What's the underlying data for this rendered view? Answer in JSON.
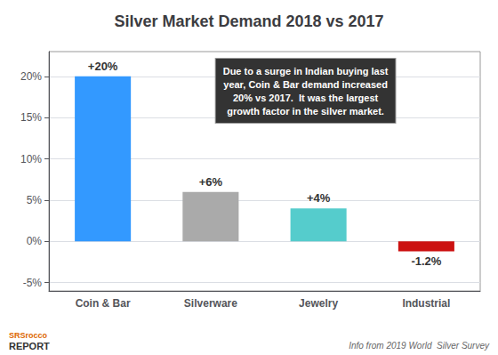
{
  "chart_data": {
    "type": "bar",
    "title": "Silver Market Demand 2018 vs 2017",
    "categories": [
      "Coin & Bar",
      "Silverware",
      "Jewelry",
      "Industrial"
    ],
    "values": [
      20,
      6,
      4,
      -1.2
    ],
    "value_labels": [
      "+20%",
      "+6%",
      "+4%",
      "-1.2%"
    ],
    "data_labels": true,
    "colors": [
      "#3399ff",
      "#aaaaaa",
      "#55cccc",
      "#cc1111"
    ],
    "ylim": [
      -6,
      23
    ],
    "yticks": [
      {
        "value": -5,
        "label": "-5%"
      },
      {
        "value": 0,
        "label": "0%"
      },
      {
        "value": 5,
        "label": "5%"
      },
      {
        "value": 10,
        "label": "10%"
      },
      {
        "value": 15,
        "label": "15%"
      },
      {
        "value": 20,
        "label": "20%"
      }
    ],
    "grid": true,
    "annotations": [
      "Due to a surge in Indian buying last\nyear, Coin & Bar demand increased\n20% vs 2017.  It was the largest\ngrowth factor in the silver market.",
      "Info from 2019 World  Silver Survey",
      "SRSrocco",
      "REPORT"
    ]
  }
}
